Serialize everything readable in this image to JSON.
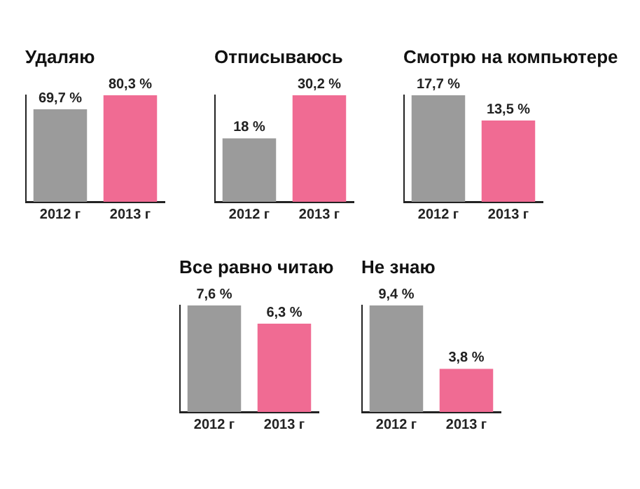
{
  "chart_data": [
    {
      "type": "bar",
      "title": "Удаляю",
      "categories": [
        "2012 г",
        "2013 г"
      ],
      "values": [
        69.7,
        80.3
      ],
      "colors": [
        "#9b9b9b",
        "#f06b93"
      ],
      "value_labels": [
        "69,7 %",
        "80,3 %"
      ],
      "tick_labels": "x",
      "grid": false,
      "legend": false
    },
    {
      "type": "bar",
      "title": "Отписываюсь",
      "categories": [
        "2012 г",
        "2013 г"
      ],
      "values": [
        18,
        30.2
      ],
      "colors": [
        "#9b9b9b",
        "#f06b93"
      ],
      "value_labels": [
        "18 %",
        "30,2 %"
      ],
      "tick_labels": "x",
      "grid": false,
      "legend": false
    },
    {
      "type": "bar",
      "title": "Смотрю на компьютере",
      "categories": [
        "2012 г",
        "2013 г"
      ],
      "values": [
        17.7,
        13.5
      ],
      "colors": [
        "#9b9b9b",
        "#f06b93"
      ],
      "value_labels": [
        "17,7 %",
        "13,5 %"
      ],
      "tick_labels": "x",
      "grid": false,
      "legend": false
    },
    {
      "type": "bar",
      "title": "Все равно читаю",
      "categories": [
        "2012 г",
        "2013 г"
      ],
      "values": [
        7.6,
        6.3
      ],
      "colors": [
        "#9b9b9b",
        "#f06b93"
      ],
      "value_labels": [
        "7,6 %",
        "6,3 %"
      ],
      "tick_labels": "x",
      "grid": false,
      "legend": false
    },
    {
      "type": "bar",
      "title": "Не знаю",
      "categories": [
        "2012 г",
        "2013 г"
      ],
      "values": [
        9.4,
        3.8
      ],
      "colors": [
        "#9b9b9b",
        "#f06b93"
      ],
      "value_labels": [
        "9,4 %",
        "3,8 %"
      ],
      "tick_labels": "x",
      "grid": false,
      "legend": false
    }
  ]
}
